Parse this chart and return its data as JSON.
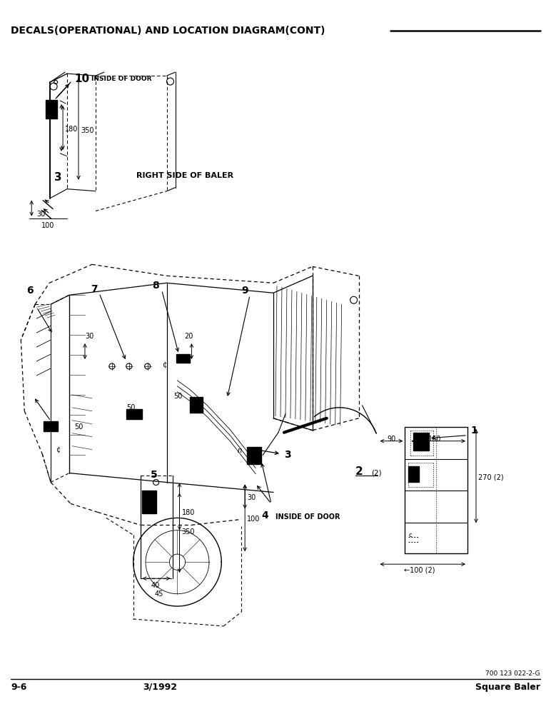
{
  "title": "DECALS(OPERATIONAL) AND LOCATION DIAGRAM(CONT)",
  "footer_left": "9-6",
  "footer_center": "3/1992",
  "footer_right": "Square Baler",
  "footer_ref": "700 123 022-2-G",
  "bg_color": "#ffffff",
  "figsize": [
    7.72,
    10.0
  ],
  "dpi": 100
}
